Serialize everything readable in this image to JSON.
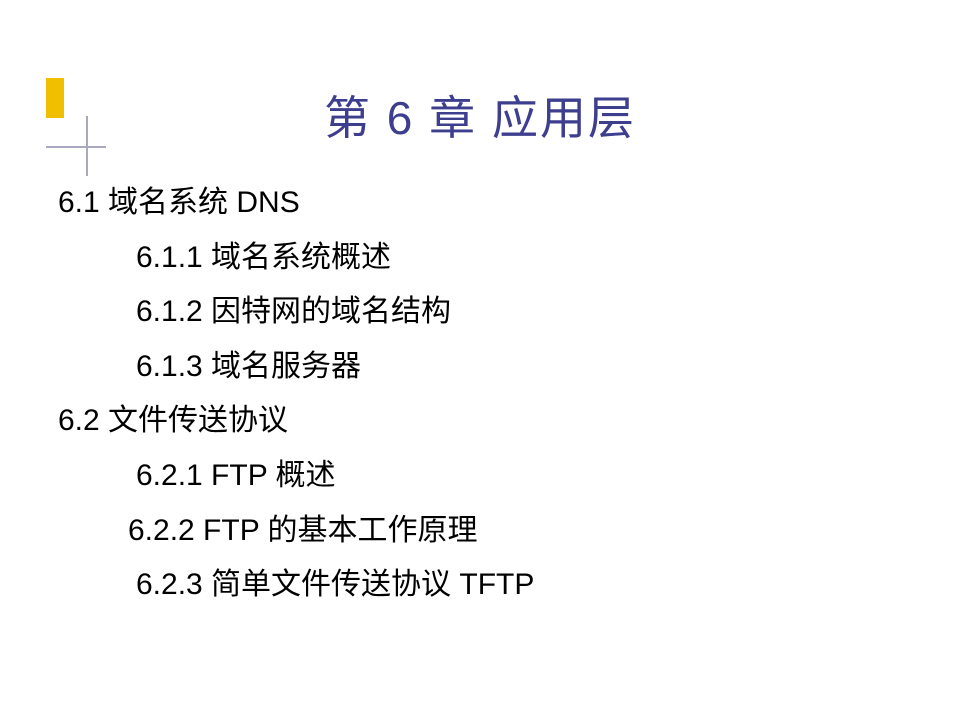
{
  "slide": {
    "title": "第 6 章  应用层",
    "title_color": "#3e3e8e",
    "title_fontsize": 46,
    "body_color": "#000000",
    "body_fontsize": 30,
    "background_color": "#ffffff",
    "decoration": {
      "yellow_block_color": "#f0c000",
      "line_color": "#a8a8c0"
    },
    "outline": {
      "s1": "6.1  域名系统 DNS",
      "s1_1": "6.1.1  域名系统概述",
      "s1_2": "6.1.2  因特网的域名结构",
      "s1_3": "6.1.3  域名服务器",
      "s2": "6.2  文件传送协议",
      "s2_1": "6.2.1  FTP 概述",
      "s2_2": "6.2.2  FTP 的基本工作原理",
      "s2_3": "6.2.3  简单文件传送协议 TFTP"
    }
  }
}
